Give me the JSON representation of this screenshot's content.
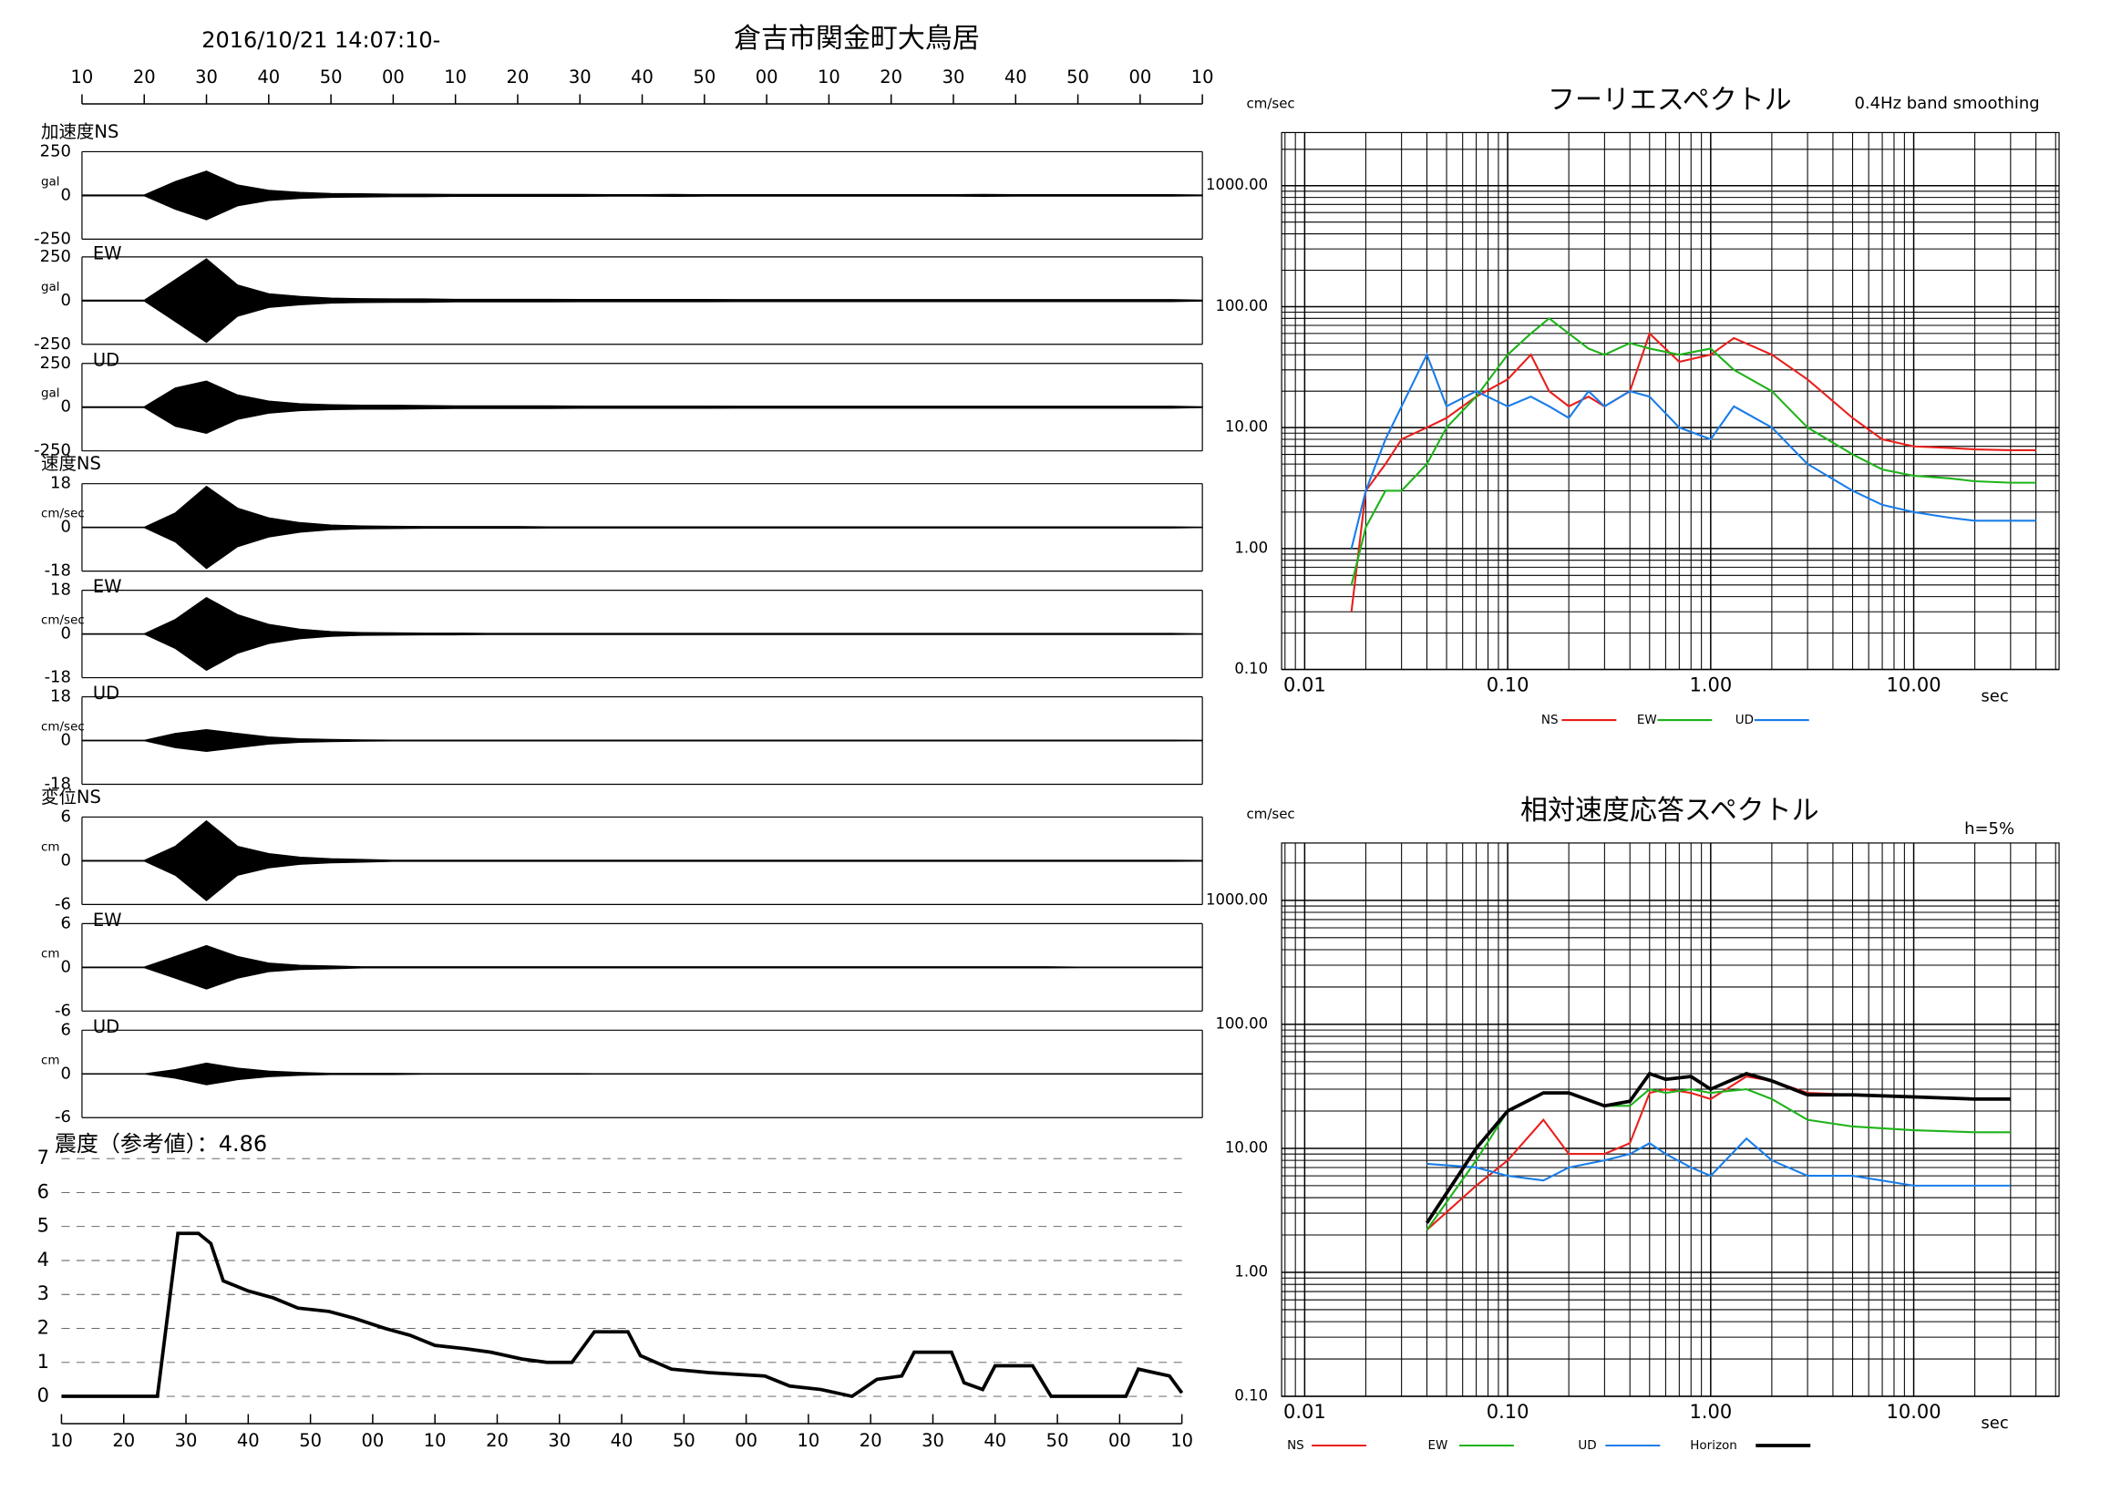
{
  "chart_data": [
    {
      "type": "waveform",
      "title": "倉吉市関金町大鳥居",
      "subtitle": "2016/10/21 14:07:10-",
      "xlim": [
        0,
        180
      ],
      "xticks": [
        {
          "value": 0,
          "label": "10"
        },
        {
          "value": 10,
          "label": "20"
        },
        {
          "value": 20,
          "label": "30"
        },
        {
          "value": 30,
          "label": "40"
        },
        {
          "value": 40,
          "label": "50"
        },
        {
          "value": 50,
          "label": "00"
        },
        {
          "value": 60,
          "label": "10"
        },
        {
          "value": 70,
          "label": "20"
        },
        {
          "value": 80,
          "label": "30"
        },
        {
          "value": 90,
          "label": "40"
        },
        {
          "value": 100,
          "label": "50"
        },
        {
          "value": 110,
          "label": "00"
        },
        {
          "value": 120,
          "label": "10"
        },
        {
          "value": 130,
          "label": "20"
        },
        {
          "value": 140,
          "label": "30"
        },
        {
          "value": 150,
          "label": "40"
        },
        {
          "value": 160,
          "label": "50"
        },
        {
          "value": 170,
          "label": "00"
        },
        {
          "value": 180,
          "label": "10"
        }
      ],
      "x": [
        0,
        5,
        10,
        15,
        20,
        25,
        30,
        35,
        40,
        45,
        50,
        55,
        60,
        65,
        70,
        75,
        80,
        85,
        90,
        95,
        100,
        105,
        110,
        115,
        120,
        125,
        130,
        135,
        140,
        145,
        150,
        155,
        160,
        165,
        170,
        175,
        180
      ],
      "groups": [
        {
          "label": "加速度",
          "unit": "gal",
          "ylim": [
            -250,
            250
          ],
          "yticks": [
            -250,
            0,
            250
          ],
          "traces": [
            {
              "name": "NS",
              "amplitude": [
                3,
                3,
                3,
                80,
                140,
                60,
                30,
                18,
                12,
                10,
                8,
                8,
                6,
                6,
                6,
                6,
                6,
                5,
                5,
                6,
                5,
                5,
                5,
                5,
                5,
                5,
                5,
                5,
                5,
                6,
                5,
                5,
                5,
                5,
                5,
                5,
                3
              ]
            },
            {
              "name": "EW",
              "amplitude": [
                3,
                3,
                3,
                120,
                240,
                90,
                40,
                25,
                15,
                12,
                10,
                10,
                8,
                8,
                8,
                8,
                7,
                7,
                7,
                7,
                7,
                6,
                6,
                6,
                6,
                6,
                6,
                6,
                6,
                6,
                6,
                6,
                6,
                6,
                6,
                6,
                3
              ]
            },
            {
              "name": "UD",
              "amplitude": [
                3,
                3,
                3,
                110,
                150,
                70,
                35,
                20,
                15,
                12,
                12,
                10,
                8,
                8,
                8,
                8,
                7,
                7,
                7,
                7,
                7,
                6,
                6,
                6,
                6,
                6,
                6,
                6,
                6,
                6,
                6,
                6,
                6,
                6,
                6,
                6,
                3
              ]
            }
          ]
        },
        {
          "label": "速度",
          "unit": "cm/sec",
          "ylim": [
            -18,
            18
          ],
          "yticks": [
            -18,
            0,
            18
          ],
          "traces": [
            {
              "name": "NS",
              "amplitude": [
                0.1,
                0.1,
                0.1,
                6,
                17,
                8,
                4,
                2,
                1,
                0.6,
                0.5,
                0.4,
                0.4,
                0.4,
                0.4,
                0.3,
                0.3,
                0.3,
                0.3,
                0.3,
                0.3,
                0.3,
                0.3,
                0.3,
                0.3,
                0.3,
                0.3,
                0.3,
                0.3,
                0.3,
                0.3,
                0.3,
                0.3,
                0.3,
                0.3,
                0.3,
                0.1
              ]
            },
            {
              "name": "EW",
              "amplitude": [
                0.1,
                0.1,
                0.1,
                6,
                15,
                8,
                4,
                2,
                1,
                0.6,
                0.5,
                0.4,
                0.4,
                0.3,
                0.3,
                0.3,
                0.3,
                0.3,
                0.3,
                0.3,
                0.3,
                0.3,
                0.3,
                0.3,
                0.3,
                0.3,
                0.3,
                0.3,
                0.3,
                0.3,
                0.3,
                0.3,
                0.3,
                0.3,
                0.3,
                0.3,
                0.1
              ]
            },
            {
              "name": "UD",
              "amplitude": [
                0.1,
                0.1,
                0.1,
                3,
                4.5,
                3,
                1.5,
                0.8,
                0.5,
                0.3,
                0.2,
                0.2,
                0.2,
                0.2,
                0.2,
                0.2,
                0.2,
                0.2,
                0.2,
                0.2,
                0.2,
                0.2,
                0.2,
                0.2,
                0.2,
                0.2,
                0.2,
                0.2,
                0.2,
                0.2,
                0.2,
                0.2,
                0.2,
                0.2,
                0.2,
                0.2,
                0.1
              ]
            }
          ]
        },
        {
          "label": "変位",
          "unit": "cm",
          "ylim": [
            -6,
            6
          ],
          "yticks": [
            -6,
            0,
            6
          ],
          "traces": [
            {
              "name": "NS",
              "amplitude": [
                0.05,
                0.05,
                0.05,
                2,
                5.5,
                2,
                1,
                0.5,
                0.3,
                0.2,
                0.1,
                0.1,
                0.1,
                0.1,
                0.1,
                0.1,
                0.1,
                0.1,
                0.1,
                0.1,
                0.1,
                0.1,
                0.1,
                0.1,
                0.1,
                0.1,
                0.1,
                0.1,
                0.1,
                0.1,
                0.1,
                0.1,
                0.1,
                0.1,
                0.1,
                0.1,
                0.05
              ]
            },
            {
              "name": "EW",
              "amplitude": [
                0.05,
                0.05,
                0.05,
                1.5,
                3,
                1.5,
                0.6,
                0.3,
                0.2,
                0.1,
                0.1,
                0.1,
                0.1,
                0.1,
                0.1,
                0.1,
                0.1,
                0.1,
                0.1,
                0.1,
                0.1,
                0.1,
                0.1,
                0.1,
                0.1,
                0.1,
                0.1,
                0.1,
                0.1,
                0.1,
                0.1,
                0.1,
                0.05,
                0.05,
                0.05,
                0.05,
                0.05
              ]
            },
            {
              "name": "UD",
              "amplitude": [
                0.02,
                0.02,
                0.02,
                0.6,
                1.5,
                0.8,
                0.4,
                0.2,
                0.1,
                0.1,
                0.1,
                0.05,
                0.05,
                0.05,
                0.05,
                0.05,
                0.05,
                0.02,
                0.02,
                0.02,
                0.02,
                0.02,
                0.02,
                0.02,
                0.02,
                0.02,
                0.02,
                0.02,
                0.02,
                0.02,
                0.02,
                0.02,
                0.02,
                0.02,
                0.02,
                0.02,
                0.02
              ]
            }
          ]
        }
      ]
    },
    {
      "type": "line",
      "title": "震度（参考値）：4.86",
      "color": "#000000",
      "grid": true,
      "xlim": [
        0,
        180
      ],
      "xticks": [
        {
          "value": 0,
          "label": "10"
        },
        {
          "value": 10,
          "label": "20"
        },
        {
          "value": 20,
          "label": "30"
        },
        {
          "value": 30,
          "label": "40"
        },
        {
          "value": 40,
          "label": "50"
        },
        {
          "value": 50,
          "label": "00"
        },
        {
          "value": 60,
          "label": "10"
        },
        {
          "value": 70,
          "label": "20"
        },
        {
          "value": 80,
          "label": "30"
        },
        {
          "value": 90,
          "label": "40"
        },
        {
          "value": 100,
          "label": "50"
        },
        {
          "value": 110,
          "label": "00"
        },
        {
          "value": 120,
          "label": "10"
        },
        {
          "value": 130,
          "label": "20"
        },
        {
          "value": 140,
          "label": "30"
        },
        {
          "value": 150,
          "label": "40"
        },
        {
          "value": 160,
          "label": "50"
        },
        {
          "value": 170,
          "label": "00"
        },
        {
          "value": 180,
          "label": "10"
        }
      ],
      "ylim": [
        0,
        7
      ],
      "yticks": [
        0,
        1,
        2,
        3,
        4,
        5,
        6,
        7
      ],
      "x": [
        0,
        15.4,
        18.7,
        22,
        24,
        26,
        30,
        34,
        38,
        43,
        47,
        52,
        56,
        60,
        65,
        69,
        74,
        78,
        82,
        85.6,
        91,
        93,
        98,
        104,
        113,
        117,
        122,
        127,
        131,
        135,
        137,
        143,
        145,
        148,
        150,
        156,
        159,
        171,
        173,
        178,
        180
      ],
      "values": [
        0,
        0,
        4.8,
        4.8,
        4.5,
        3.4,
        3.1,
        2.9,
        2.6,
        2.5,
        2.3,
        2.0,
        1.8,
        1.5,
        1.4,
        1.3,
        1.1,
        1.0,
        1.0,
        1.9,
        1.9,
        1.2,
        0.8,
        0.7,
        0.6,
        0.3,
        0.2,
        0,
        0.5,
        0.6,
        1.3,
        1.3,
        0.4,
        0.2,
        0.9,
        0.9,
        0,
        0,
        0.8,
        0.6,
        0.1
      ]
    },
    {
      "type": "line",
      "log_x": true,
      "log_y": true,
      "grid": true,
      "title": "フーリエスペクトル",
      "subtitle": "0.4Hz band smoothing",
      "y_label": "cm/sec",
      "x_label": "sec",
      "xlim": [
        0.0077,
        52
      ],
      "xticks": [
        {
          "value": 0.01,
          "label": "0.01"
        },
        {
          "value": 0.1,
          "label": "0.10"
        },
        {
          "value": 1,
          "label": "1.00"
        },
        {
          "value": 10,
          "label": "10.00"
        }
      ],
      "ylim": [
        0.1,
        2750
      ],
      "yticks": [
        {
          "value": 0.1,
          "label": "0.10"
        },
        {
          "value": 1,
          "label": "1.00"
        },
        {
          "value": 10,
          "label": "10.00"
        },
        {
          "value": 100,
          "label": "100.00"
        },
        {
          "value": 1000,
          "label": "1000.00"
        }
      ],
      "x": [
        0.017,
        0.02,
        0.025,
        0.03,
        0.04,
        0.05,
        0.07,
        0.1,
        0.13,
        0.16,
        0.2,
        0.25,
        0.3,
        0.4,
        0.5,
        0.7,
        1,
        1.3,
        2,
        3,
        5,
        7,
        10,
        15,
        20,
        30,
        40
      ],
      "series": [
        {
          "name": "NS",
          "color": "#e8201c",
          "values": [
            0.3,
            3,
            5,
            8,
            10,
            12,
            18,
            25,
            40,
            20,
            15,
            18,
            15,
            20,
            60,
            35,
            40,
            55,
            40,
            25,
            12,
            8,
            7,
            6.8,
            6.6,
            6.5,
            6.5
          ]
        },
        {
          "name": "EW",
          "color": "#1fb31a",
          "values": [
            0.5,
            1.5,
            3,
            3,
            5,
            10,
            18,
            40,
            60,
            80,
            60,
            45,
            40,
            50,
            45,
            40,
            45,
            30,
            20,
            10,
            6,
            4.5,
            4,
            3.8,
            3.6,
            3.5,
            3.5
          ]
        },
        {
          "name": "UD",
          "color": "#1a7de8",
          "values": [
            1,
            3,
            8,
            15,
            40,
            15,
            20,
            15,
            18,
            15,
            12,
            20,
            15,
            20,
            18,
            10,
            8,
            15,
            10,
            5,
            3,
            2.3,
            2,
            1.8,
            1.7,
            1.7,
            1.7
          ]
        }
      ]
    },
    {
      "type": "line",
      "log_x": true,
      "log_y": true,
      "grid": true,
      "title": "相対速度応答スペクトル",
      "annotation": "h=5%",
      "y_label": "cm/sec",
      "x_label": "sec",
      "xlim": [
        0.0077,
        52
      ],
      "xticks": [
        {
          "value": 0.01,
          "label": "0.01"
        },
        {
          "value": 0.1,
          "label": "0.10"
        },
        {
          "value": 1,
          "label": "1.00"
        },
        {
          "value": 10,
          "label": "10.00"
        }
      ],
      "ylim": [
        0.1,
        2900
      ],
      "yticks": [
        {
          "value": 0.1,
          "label": "0.10"
        },
        {
          "value": 1,
          "label": "1.00"
        },
        {
          "value": 10,
          "label": "10.00"
        },
        {
          "value": 100,
          "label": "100.00"
        },
        {
          "value": 1000,
          "label": "1000.00"
        }
      ],
      "x": [
        0.04,
        0.07,
        0.1,
        0.15,
        0.2,
        0.3,
        0.4,
        0.5,
        0.6,
        0.8,
        1,
        1.5,
        2,
        3,
        5,
        10,
        20,
        30
      ],
      "series": [
        {
          "name": "NS",
          "color": "#e8201c",
          "values": [
            2.2,
            5,
            8,
            17,
            9,
            9,
            11,
            28,
            30,
            28,
            25,
            38,
            35,
            28,
            27,
            26,
            25,
            25
          ]
        },
        {
          "name": "EW",
          "color": "#1fb31a",
          "values": [
            2.2,
            8,
            20,
            28,
            28,
            22,
            22,
            30,
            28,
            30,
            28,
            30,
            25,
            17,
            15,
            14,
            13.5,
            13.5
          ]
        },
        {
          "name": "UD",
          "color": "#1a7de8",
          "values": [
            7.5,
            7,
            6,
            5.5,
            7,
            8,
            9,
            11,
            9,
            7,
            6,
            12,
            8,
            6,
            6,
            5,
            5,
            5
          ]
        },
        {
          "name": "Horizon",
          "color": "#000000",
          "values": [
            2.5,
            10,
            20,
            28,
            28,
            22,
            24,
            40,
            36,
            38,
            30,
            40,
            35,
            27,
            27,
            26,
            25,
            25
          ]
        }
      ]
    }
  ]
}
